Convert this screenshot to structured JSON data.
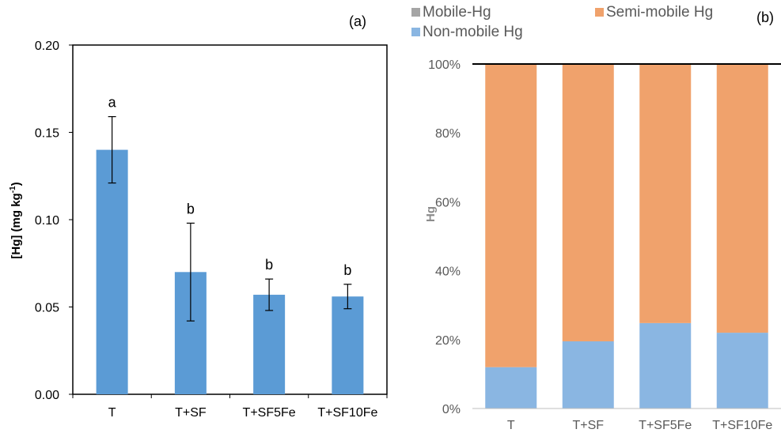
{
  "chart_data": [
    {
      "panel_label": "(a)",
      "type": "bar",
      "categories": [
        "T",
        "T+SF",
        "T+SF5Fe",
        "T+SF10Fe"
      ],
      "values": [
        0.14,
        0.07,
        0.057,
        0.056
      ],
      "error_low": [
        0.121,
        0.042,
        0.048,
        0.049
      ],
      "error_high": [
        0.159,
        0.098,
        0.066,
        0.063
      ],
      "significance_letters": [
        "a",
        "b",
        "b",
        "b"
      ],
      "ylabel_main": "[Hg] (mg kg",
      "ylabel_sup": "-1",
      "ylabel_end": ")",
      "ylim": [
        0,
        0.2
      ],
      "yticks": [
        0,
        0.05,
        0.1,
        0.15,
        0.2
      ],
      "ytick_labels": [
        "0.00",
        "0.05",
        "0.10",
        "0.15",
        "0.20"
      ],
      "bar_color": "#5b9bd5",
      "grid": false
    },
    {
      "panel_label": "(b)",
      "type": "bar",
      "stacked": true,
      "percent": true,
      "categories": [
        "T",
        "T+SF",
        "T+SF5Fe",
        "T+SF10Fe"
      ],
      "series": [
        {
          "name": "Non-mobile Hg",
          "color": "#8ab6e2",
          "values": [
            12,
            19.5,
            24.8,
            22
          ]
        },
        {
          "name": "Mobile-Hg",
          "color": "#a5a5a5",
          "values": [
            0,
            0,
            0,
            0
          ]
        },
        {
          "name": "Semi-mobile Hg",
          "color": "#f0a26c",
          "values": [
            88,
            80.5,
            75.2,
            78
          ]
        }
      ],
      "legend_order": [
        "Mobile-Hg",
        "Semi-mobile Hg",
        "Non-mobile Hg"
      ],
      "legend_position": "top",
      "ylabel": "Hg",
      "ylim": [
        0,
        100
      ],
      "yticks": [
        0,
        20,
        40,
        60,
        80,
        100
      ],
      "ytick_labels": [
        "0%",
        "20%",
        "40%",
        "60%",
        "80%",
        "100%"
      ],
      "grid": false
    }
  ]
}
